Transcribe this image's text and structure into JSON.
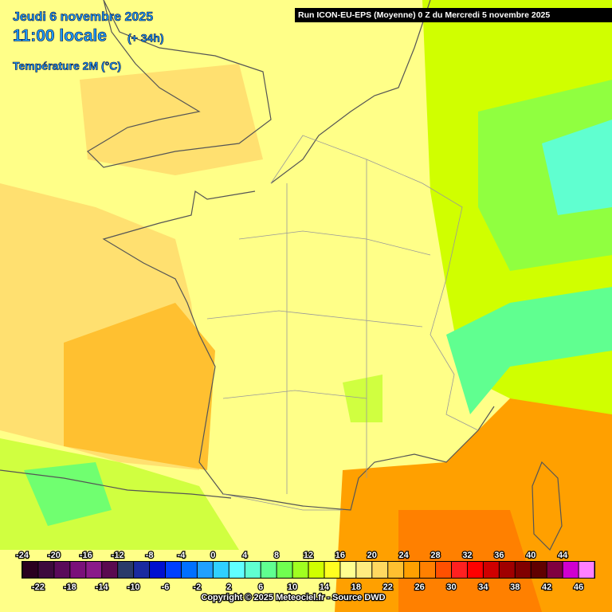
{
  "header": {
    "date": "Jeudi 6 novembre 2025",
    "time": "11:00 locale",
    "lead": "(+ 34h)",
    "parameter": "Température 2M (°C)",
    "run": "Run ICON-EU-EPS (Moyenne) 0 Z du Mercredi 5 novembre 2025"
  },
  "legend": {
    "values": [
      -24,
      -22,
      -20,
      -18,
      -16,
      -14,
      -12,
      -10,
      -8,
      -6,
      -4,
      -2,
      0,
      2,
      4,
      6,
      8,
      10,
      12,
      14,
      16,
      18,
      20,
      22,
      24,
      26,
      28,
      30,
      32,
      34,
      36,
      38,
      40,
      42,
      44,
      46
    ],
    "colors": [
      "#2a0020",
      "#3d0a3d",
      "#5a0a5a",
      "#7a107a",
      "#8a1a8a",
      "#5a0a50",
      "#2a3a6a",
      "#1a2aa0",
      "#0010d0",
      "#0040ff",
      "#0070ff",
      "#20a0ff",
      "#30d0ff",
      "#60ffff",
      "#60ffd0",
      "#60ff90",
      "#70ff50",
      "#a0ff20",
      "#d0ff00",
      "#ffff20",
      "#ffff90",
      "#ffec80",
      "#ffd860",
      "#ffc030",
      "#ffa000",
      "#ff8000",
      "#ff5000",
      "#ff2020",
      "#ff0000",
      "#d00000",
      "#a00000",
      "#800000",
      "#600000",
      "#800040",
      "#d000d0",
      "#ff80ff"
    ]
  },
  "footer": {
    "copyright": "Copyright © 2025 Meteociel.fr - Source DWD"
  }
}
